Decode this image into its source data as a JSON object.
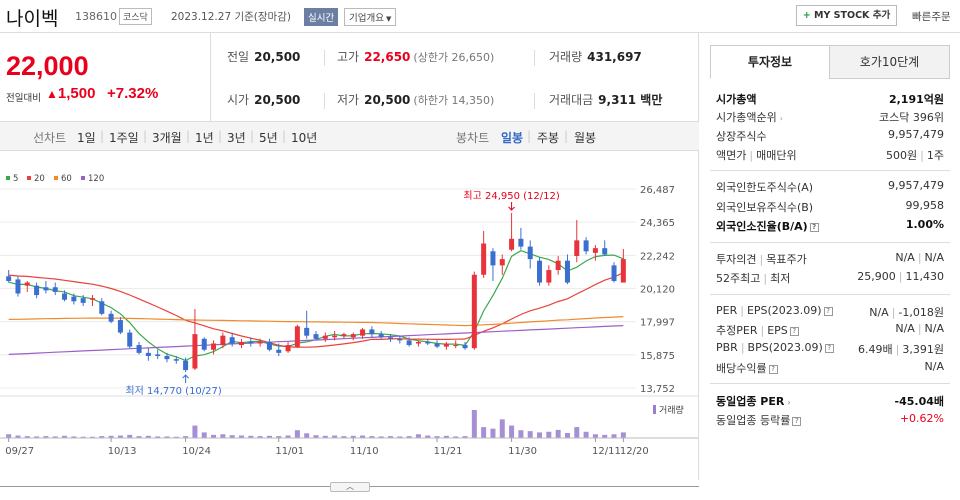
{
  "header": {
    "name": "나이벡",
    "code": "138610",
    "market": "코스닥",
    "date": "2023.12.27 기준(장마감)",
    "realtime": "실시간",
    "overview": "기업개요",
    "mystock": "MY STOCK 추가",
    "quick_order": "빠른주문"
  },
  "price": {
    "current": "22,000",
    "change_label": "전일대비",
    "change": "1,500",
    "change_pct": "+7.32%",
    "colors": {
      "up": "#e8001c"
    }
  },
  "stats": {
    "prev_close_label": "전일",
    "prev_close": "20,500",
    "high_label": "고가",
    "high": "22,650",
    "upper_limit": "(상한가 26,650)",
    "volume_label": "거래량",
    "volume": "431,697",
    "open_label": "시가",
    "open": "20,500",
    "low_label": "저가",
    "low": "20,500",
    "lower_limit": "(하한가 14,350)",
    "amount_label": "거래대금",
    "amount": "9,311 백만"
  },
  "chart_tabs": {
    "line_label": "선차트",
    "line": [
      "1일",
      "1주일",
      "3개월",
      "1년",
      "3년",
      "5년",
      "10년"
    ],
    "candle_label": "봉차트",
    "candle": [
      "일봉",
      "주봉",
      "월봉"
    ],
    "active": "일봉"
  },
  "chart_data": {
    "type": "candlestick",
    "legend": [
      {
        "name": "5",
        "color": "#3aa84a"
      },
      {
        "name": "20",
        "color": "#e8433a"
      },
      {
        "name": "60",
        "color": "#f08a2b"
      },
      {
        "name": "120",
        "color": "#9a5fc9"
      }
    ],
    "y_ticks": [
      "26,487",
      "24,365",
      "22,242",
      "20,120",
      "17,997",
      "15,875",
      "13,752"
    ],
    "ylim": [
      13752,
      26487
    ],
    "x_ticks": [
      "09/27",
      "10/13",
      "10/24",
      "11/01",
      "11/10",
      "11/21",
      "11/30",
      "12/11",
      "12/20"
    ],
    "high_annotation": "최고 24,950 (12/12)",
    "low_annotation": "최저 14,770 (10/27)",
    "volume_label": "거래량",
    "candles": [
      {
        "o": 20900,
        "h": 21300,
        "l": 20500,
        "c": 20600
      },
      {
        "o": 20700,
        "h": 20900,
        "l": 19600,
        "c": 19800
      },
      {
        "o": 20300,
        "h": 20600,
        "l": 19900,
        "c": 20500
      },
      {
        "o": 20300,
        "h": 20500,
        "l": 19500,
        "c": 19700
      },
      {
        "o": 20200,
        "h": 20600,
        "l": 19800,
        "c": 20000
      },
      {
        "o": 20200,
        "h": 20500,
        "l": 19700,
        "c": 19900
      },
      {
        "o": 19800,
        "h": 20000,
        "l": 19300,
        "c": 19400
      },
      {
        "o": 19600,
        "h": 19800,
        "l": 19100,
        "c": 19300
      },
      {
        "o": 19500,
        "h": 19700,
        "l": 19000,
        "c": 19200
      },
      {
        "o": 19400,
        "h": 19700,
        "l": 19000,
        "c": 19500
      },
      {
        "o": 19300,
        "h": 19500,
        "l": 18400,
        "c": 18500
      },
      {
        "o": 18500,
        "h": 18700,
        "l": 17900,
        "c": 18000
      },
      {
        "o": 18100,
        "h": 18300,
        "l": 17200,
        "c": 17300
      },
      {
        "o": 17300,
        "h": 17500,
        "l": 16300,
        "c": 16400
      },
      {
        "o": 16500,
        "h": 16700,
        "l": 15900,
        "c": 16000
      },
      {
        "o": 16000,
        "h": 16300,
        "l": 15500,
        "c": 15800
      },
      {
        "o": 15900,
        "h": 16200,
        "l": 15600,
        "c": 15800
      },
      {
        "o": 15800,
        "h": 16000,
        "l": 15400,
        "c": 15600
      },
      {
        "o": 15600,
        "h": 15800,
        "l": 15300,
        "c": 15500
      },
      {
        "o": 15500,
        "h": 15700,
        "l": 14770,
        "c": 14900
      },
      {
        "o": 15000,
        "h": 18800,
        "l": 14900,
        "c": 17200
      },
      {
        "o": 16900,
        "h": 17000,
        "l": 16100,
        "c": 16200
      },
      {
        "o": 16200,
        "h": 16800,
        "l": 15900,
        "c": 16600
      },
      {
        "o": 16500,
        "h": 17300,
        "l": 16300,
        "c": 17100
      },
      {
        "o": 17000,
        "h": 17300,
        "l": 16400,
        "c": 16600
      },
      {
        "o": 16500,
        "h": 16900,
        "l": 16300,
        "c": 16700
      },
      {
        "o": 16700,
        "h": 17000,
        "l": 16400,
        "c": 16600
      },
      {
        "o": 16600,
        "h": 16900,
        "l": 16400,
        "c": 16700
      },
      {
        "o": 16700,
        "h": 16900,
        "l": 16100,
        "c": 16200
      },
      {
        "o": 16200,
        "h": 16600,
        "l": 15800,
        "c": 16000
      },
      {
        "o": 16100,
        "h": 16700,
        "l": 16000,
        "c": 16500
      },
      {
        "o": 16400,
        "h": 17800,
        "l": 16300,
        "c": 17700
      },
      {
        "o": 17600,
        "h": 18700,
        "l": 16900,
        "c": 17100
      },
      {
        "o": 17200,
        "h": 17400,
        "l": 16800,
        "c": 16900
      },
      {
        "o": 16900,
        "h": 17300,
        "l": 16700,
        "c": 17100
      },
      {
        "o": 17000,
        "h": 17400,
        "l": 16800,
        "c": 17100
      },
      {
        "o": 17100,
        "h": 17300,
        "l": 16900,
        "c": 17200
      },
      {
        "o": 17000,
        "h": 17300,
        "l": 16800,
        "c": 17200
      },
      {
        "o": 17100,
        "h": 17600,
        "l": 16900,
        "c": 17500
      },
      {
        "o": 17500,
        "h": 17700,
        "l": 17000,
        "c": 17200
      },
      {
        "o": 17200,
        "h": 17400,
        "l": 16900,
        "c": 17000
      },
      {
        "o": 17000,
        "h": 17200,
        "l": 16700,
        "c": 16900
      },
      {
        "o": 16900,
        "h": 17100,
        "l": 16600,
        "c": 16800
      },
      {
        "o": 16800,
        "h": 17000,
        "l": 16400,
        "c": 16500
      },
      {
        "o": 16600,
        "h": 16800,
        "l": 16400,
        "c": 16700
      },
      {
        "o": 16700,
        "h": 16900,
        "l": 16500,
        "c": 16600
      },
      {
        "o": 16600,
        "h": 16800,
        "l": 16300,
        "c": 16400
      },
      {
        "o": 16400,
        "h": 16700,
        "l": 16200,
        "c": 16600
      },
      {
        "o": 16500,
        "h": 16800,
        "l": 16300,
        "c": 16500
      },
      {
        "o": 16500,
        "h": 16700,
        "l": 16200,
        "c": 16300
      },
      {
        "o": 16300,
        "h": 21200,
        "l": 16200,
        "c": 21000
      },
      {
        "o": 21000,
        "h": 23800,
        "l": 20800,
        "c": 23000
      },
      {
        "o": 22500,
        "h": 22700,
        "l": 20600,
        "c": 21600
      },
      {
        "o": 21600,
        "h": 22300,
        "l": 21000,
        "c": 22000
      },
      {
        "o": 22600,
        "h": 24950,
        "l": 22500,
        "c": 23300
      },
      {
        "o": 23300,
        "h": 24000,
        "l": 22600,
        "c": 22800
      },
      {
        "o": 22800,
        "h": 23200,
        "l": 21400,
        "c": 22000
      },
      {
        "o": 21900,
        "h": 22100,
        "l": 20300,
        "c": 20500
      },
      {
        "o": 20500,
        "h": 21600,
        "l": 20300,
        "c": 21300
      },
      {
        "o": 21300,
        "h": 22200,
        "l": 21000,
        "c": 21900
      },
      {
        "o": 21900,
        "h": 22300,
        "l": 20400,
        "c": 20500
      },
      {
        "o": 22200,
        "h": 24500,
        "l": 21800,
        "c": 23200
      },
      {
        "o": 23200,
        "h": 23400,
        "l": 22300,
        "c": 22500
      },
      {
        "o": 22400,
        "h": 22900,
        "l": 21900,
        "c": 22700
      },
      {
        "o": 22700,
        "h": 23200,
        "l": 22200,
        "c": 22300
      },
      {
        "o": 21600,
        "h": 21800,
        "l": 20500,
        "c": 20600
      },
      {
        "o": 20500,
        "h": 22650,
        "l": 20500,
        "c": 22000
      }
    ],
    "volumes": [
      12,
      8,
      6,
      5,
      6,
      5,
      7,
      5,
      4,
      4,
      6,
      7,
      8,
      10,
      6,
      7,
      5,
      5,
      4,
      6,
      40,
      18,
      10,
      12,
      9,
      8,
      7,
      6,
      7,
      6,
      8,
      25,
      15,
      9,
      7,
      8,
      6,
      7,
      8,
      6,
      5,
      6,
      5,
      6,
      12,
      8,
      6,
      7,
      5,
      6,
      90,
      35,
      30,
      60,
      40,
      25,
      22,
      18,
      20,
      26,
      16,
      35,
      20,
      12,
      10,
      12,
      18
    ]
  },
  "invest": {
    "tab_active": "투자정보",
    "tab_other": "호가10단계",
    "mcap_label": "시가총액",
    "mcap": "2,191억원",
    "mcap_rank_label": "시가총액순위",
    "mcap_rank": "코스닥 396위",
    "shares_label": "상장주식수",
    "shares": "9,957,479",
    "par_label": "액면가",
    "trade_unit_label": "매매단위",
    "par": "500원",
    "trade_unit": "1주",
    "foreign_limit_label": "외국인한도주식수(A)",
    "foreign_limit": "9,957,479",
    "foreign_hold_label": "외국인보유주식수(B)",
    "foreign_hold": "99,958",
    "foreign_ratio_label": "외국인소진율(B/A)",
    "foreign_ratio": "1.00%",
    "opinion_label": "투자의견",
    "target_label": "목표주가",
    "opinion": "N/A",
    "target": "N/A",
    "wk52_high_label": "52주최고",
    "wk52_low_label": "최저",
    "wk52_high": "25,900",
    "wk52_low": "11,430",
    "per_label": "PER",
    "eps_label": "EPS(2023.09)",
    "per": "N/A",
    "eps": "-1,018원",
    "est_per_label": "추정PER",
    "est_eps_label": "EPS",
    "est_per": "N/A",
    "est_eps": "N/A",
    "pbr_label": "PBR",
    "bps_label": "BPS(2023.09)",
    "pbr": "6.49배",
    "bps": "3,391원",
    "div_label": "배당수익률",
    "div": "N/A",
    "ind_per_label": "동일업종 PER",
    "ind_per": "-45.04배",
    "ind_chg_label": "동일업종 등락률",
    "ind_chg": "+0.62%"
  }
}
